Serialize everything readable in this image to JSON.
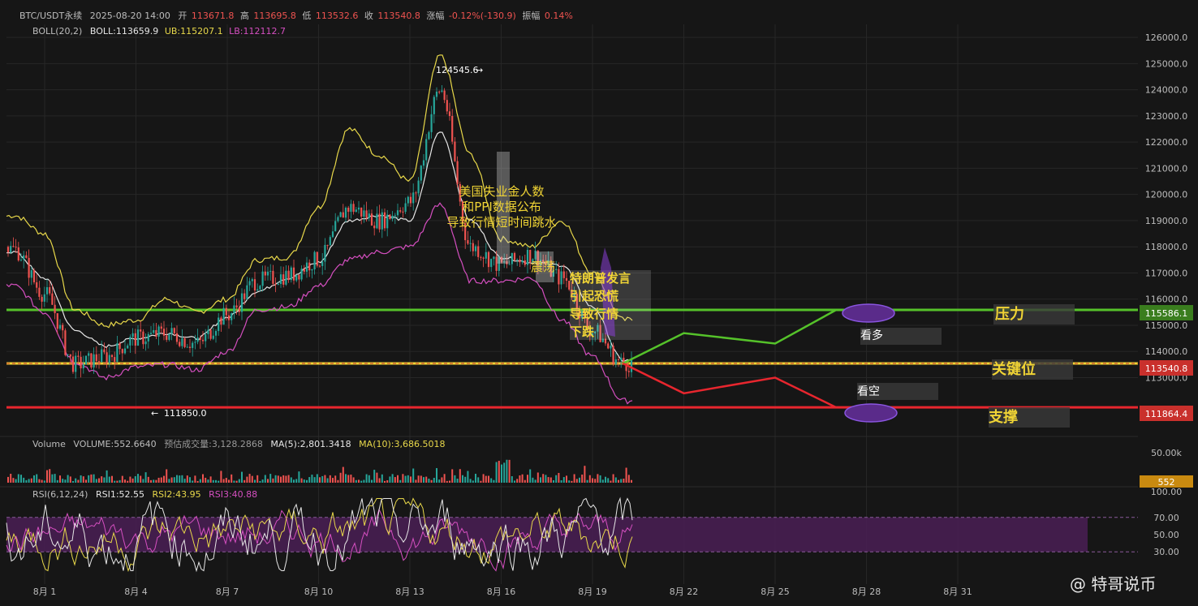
{
  "header": {
    "symbol": "BTC/USDT永续",
    "datetime": "2025-08-20 14:00",
    "open_label": "开",
    "open": "113671.8",
    "high_label": "高",
    "high": "113695.8",
    "low_label": "低",
    "low": "113532.6",
    "close_label": "收",
    "close": "113540.8",
    "change_label": "涨幅",
    "change": "-0.12%(-130.9)",
    "amp_label": "振幅",
    "amp": "0.14%"
  },
  "boll": {
    "label": "BOLL(20,2)",
    "mid": "BOLL:113659.9",
    "ub": "UB:115207.1",
    "lb": "LB:112112.7"
  },
  "volume": {
    "label": "Volume",
    "value": "VOLUME:552.6640",
    "est": "预估成交量:3,128.2868",
    "ma5": "MA(5):2,801.3418",
    "ma10": "MA(10):3,686.5018",
    "axis_label": "50.00k",
    "current": "552"
  },
  "rsi": {
    "label": "RSI(6,12,24)",
    "rsi1": "RSI1:52.55",
    "rsi2": "RSI2:43.95",
    "rsi3": "RSI3:40.88",
    "ticks": [
      "100.00",
      "70.00",
      "50.00",
      "30.00"
    ]
  },
  "x_ticks": [
    "8月 1",
    "8月 4",
    "8月 7",
    "8月 10",
    "8月 13",
    "8月 16",
    "8月 19",
    "8月 22",
    "8月 25",
    "8月 28",
    "8月 31"
  ],
  "annotations": {
    "high_marker": "124545.6",
    "low_marker": "111850.0",
    "news1": [
      "美国失业金人数",
      "和PPI数据公布",
      "导致行情短时间跳水"
    ],
    "range": "震荡",
    "news2": [
      "特朗普发言",
      "引起恐慌",
      "导致行情",
      "下跌"
    ],
    "resistance": "压力",
    "key": "关键位",
    "support": "支撑",
    "bull": "看多",
    "bear": "看空"
  },
  "level_labels": {
    "resistance": "115586.1",
    "key": "113540.8",
    "support": "111864.4"
  },
  "watermark": "@ 特哥说币",
  "colors": {
    "up": "#26a69a",
    "down": "#ef5350",
    "boll_ub": "#e8d84a",
    "boll_mid": "#e6e6e6",
    "boll_lb": "#d54fc0",
    "resistance": "#55c22a",
    "key": "#f0d435",
    "support": "#e8262e",
    "rsi_band": "#4a1f55",
    "text": "#d8d8d8"
  },
  "chart_data": {
    "type": "candlestick",
    "title": "BTC/USDT永续",
    "y_ticks": [
      "126000.0",
      "125000.0",
      "124000.0",
      "123000.0",
      "122000.0",
      "121000.0",
      "120000.0",
      "119000.0",
      "118000.0",
      "117000.0",
      "116000.0",
      "115000.0",
      "114000.0",
      "113000.0"
    ],
    "ylim": [
      111000,
      126500
    ],
    "price_x": [
      "7/30",
      "7/31",
      "8/1",
      "8/2",
      "8/3",
      "8/4",
      "8/5",
      "8/6",
      "8/7",
      "8/8",
      "8/9",
      "8/10",
      "8/11",
      "8/12",
      "8/13",
      "8/14",
      "8/15",
      "8/16",
      "8/17",
      "8/18",
      "8/19",
      "8/20"
    ],
    "price": [
      118500,
      117900,
      116200,
      113500,
      113800,
      114500,
      114700,
      114300,
      115400,
      116700,
      116900,
      117500,
      119500,
      119000,
      119700,
      124000,
      118000,
      117300,
      117700,
      116800,
      114800,
      113540.8
    ],
    "boll_ub": [
      119000,
      119200,
      118500,
      115600,
      115000,
      115200,
      116000,
      115500,
      116000,
      117500,
      117600,
      119500,
      122500,
      121500,
      120500,
      125300,
      121500,
      118300,
      118000,
      119000,
      117000,
      115207.1
    ],
    "boll_mid": [
      117900,
      117800,
      116800,
      114800,
      114200,
      114500,
      114700,
      114500,
      115300,
      116300,
      116800,
      117400,
      119000,
      119200,
      119000,
      122400,
      119000,
      117600,
      117400,
      117300,
      115700,
      113659.9
    ],
    "boll_lb": [
      116800,
      116500,
      115500,
      113600,
      113000,
      113400,
      113500,
      113300,
      114000,
      115600,
      115700,
      116500,
      117500,
      117800,
      118000,
      119600,
      116700,
      116700,
      116800,
      115200,
      113800,
      112112.7
    ],
    "levels": {
      "resistance": 115586.1,
      "key": 113540.8,
      "support": 111864.4
    },
    "projection_bull": [
      [
        "8/20",
        113540.8
      ],
      [
        "8/22",
        114700
      ],
      [
        "8/25",
        114300
      ],
      [
        "8/27",
        115586.1
      ]
    ],
    "projection_bear": [
      [
        "8/20",
        113540.8
      ],
      [
        "8/22",
        112400
      ],
      [
        "8/25",
        113000
      ],
      [
        "8/27",
        111864.4
      ]
    ],
    "rsi_band": [
      30,
      70
    ]
  }
}
